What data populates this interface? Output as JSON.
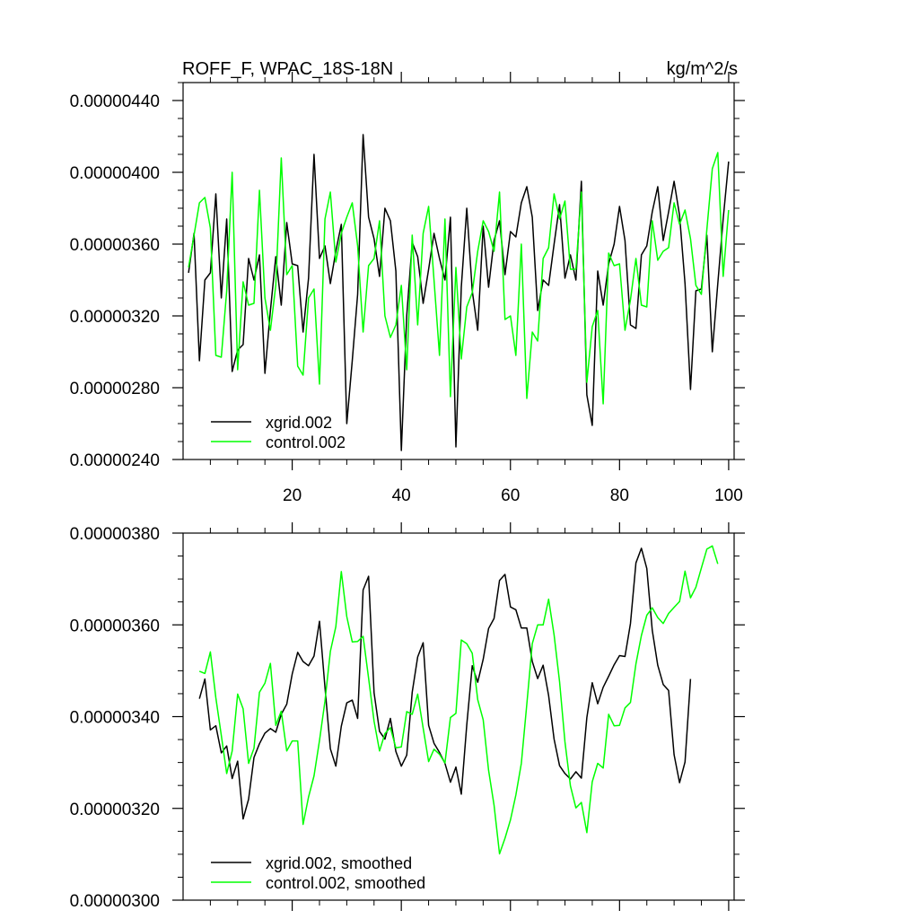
{
  "colors": {
    "series_a": "#000000",
    "series_b": "#00ff00",
    "axis": "#000000",
    "background": "#ffffff"
  },
  "chart_data": [
    {
      "type": "line",
      "title": "ROFF_F, WPAC_18S-18N",
      "units": "kg/m^2/s",
      "xlabel": "",
      "ylabel": "",
      "xlim": [
        0,
        101
      ],
      "ylim": [
        2.4e-06,
        4.5e-06
      ],
      "y_tick_labels": [
        "0.00000240",
        "0.00000280",
        "0.00000320",
        "0.00000360",
        "0.00000400",
        "0.00000440"
      ],
      "y_ticks": [
        2.4e-06,
        2.8e-06,
        3.2e-06,
        3.6e-06,
        4e-06,
        4.4e-06
      ],
      "x_tick_labels": [
        "20",
        "40",
        "60",
        "80",
        "100"
      ],
      "x_ticks": [
        20,
        40,
        60,
        80,
        100
      ],
      "legend_position": "bottom-left",
      "series": [
        {
          "name": "xgrid.002",
          "color": "#000000",
          "x_start": 1,
          "values": [
            3.44e-06,
            3.66e-06,
            2.95e-06,
            3.4e-06,
            3.44e-06,
            3.88e-06,
            3.3e-06,
            3.74e-06,
            2.89e-06,
            3.01e-06,
            3.04e-06,
            3.52e-06,
            3.4e-06,
            3.54e-06,
            2.88e-06,
            3.23e-06,
            3.53e-06,
            3.26e-06,
            3.72e-06,
            3.49e-06,
            3.48e-06,
            3.11e-06,
            3.41e-06,
            4.1e-06,
            3.52e-06,
            3.59e-06,
            3.38e-06,
            3.56e-06,
            3.71e-06,
            2.6e-06,
            2.95e-06,
            3.32e-06,
            4.21e-06,
            3.75e-06,
            3.63e-06,
            3.42e-06,
            3.8e-06,
            3.73e-06,
            3.45e-06,
            2.45e-06,
            3.2e-06,
            3.61e-06,
            3.53e-06,
            3.27e-06,
            3.46e-06,
            3.66e-06,
            3.52e-06,
            3.4e-06,
            3.75e-06,
            2.47e-06,
            3.36e-06,
            3.8e-06,
            3.34e-06,
            3.12e-06,
            3.7e-06,
            3.36e-06,
            3.62e-06,
            3.73e-06,
            3.43e-06,
            3.67e-06,
            3.64e-06,
            3.83e-06,
            3.92e-06,
            3.75e-06,
            3.23e-06,
            3.4e-06,
            3.37e-06,
            3.6e-06,
            3.82e-06,
            3.41e-06,
            3.54e-06,
            3.4e-06,
            3.95e-06,
            2.76e-06,
            2.59e-06,
            3.45e-06,
            3.26e-06,
            3.49e-06,
            3.6e-06,
            3.81e-06,
            3.62e-06,
            3.15e-06,
            3.13e-06,
            3.54e-06,
            3.59e-06,
            3.78e-06,
            3.92e-06,
            3.62e-06,
            3.78e-06,
            3.95e-06,
            3.76e-06,
            3.38e-06,
            2.79e-06,
            3.34e-06,
            3.35e-06,
            3.65e-06,
            3e-06,
            3.38e-06,
            3.74e-06,
            4.06e-06
          ]
        },
        {
          "name": "control.002",
          "color": "#00ff00",
          "x_start": 1,
          "values": [
            3.47e-06,
            3.65e-06,
            3.83e-06,
            3.86e-06,
            3.69e-06,
            2.98e-06,
            2.97e-06,
            3.34e-06,
            4e-06,
            2.9e-06,
            3.39e-06,
            3.26e-06,
            3.27e-06,
            3.9e-06,
            3.3e-06,
            3.12e-06,
            3.37e-06,
            4.08e-06,
            3.43e-06,
            3.48e-06,
            2.92e-06,
            2.87e-06,
            3.3e-06,
            3.35e-06,
            2.82e-06,
            3.74e-06,
            3.89e-06,
            3.5e-06,
            3.66e-06,
            3.75e-06,
            3.83e-06,
            3.59e-06,
            3.11e-06,
            3.48e-06,
            3.52e-06,
            3.73e-06,
            3.2e-06,
            3.08e-06,
            3.15e-06,
            3.37e-06,
            2.9e-06,
            3.65e-06,
            3.15e-06,
            3.66e-06,
            3.81e-06,
            3.4e-06,
            2.98e-06,
            3.74e-06,
            2.75e-06,
            3.47e-06,
            2.96e-06,
            3.25e-06,
            3.33e-06,
            3.56e-06,
            3.73e-06,
            3.67e-06,
            3.56e-06,
            3.89e-06,
            3.18e-06,
            3.2e-06,
            2.98e-06,
            3.6e-06,
            2.74e-06,
            3.11e-06,
            3.06e-06,
            3.52e-06,
            3.58e-06,
            3.88e-06,
            3.74e-06,
            3.84e-06,
            3.46e-06,
            3.46e-06,
            3.89e-06,
            2.83e-06,
            3.14e-06,
            3.23e-06,
            2.71e-06,
            3.55e-06,
            3.48e-06,
            3.49e-06,
            3.12e-06,
            3.29e-06,
            3.52e-06,
            3.26e-06,
            3.25e-06,
            3.73e-06,
            3.51e-06,
            3.56e-06,
            3.58e-06,
            3.83e-06,
            3.71e-06,
            3.79e-06,
            3.63e-06,
            3.37e-06,
            3.32e-06,
            3.68e-06,
            4.02e-06,
            4.11e-06,
            3.42e-06,
            3.79e-06
          ]
        }
      ]
    },
    {
      "type": "line",
      "title": "",
      "xlabel": "",
      "ylabel": "",
      "xlim": [
        0,
        101
      ],
      "ylim": [
        3e-06,
        3.8e-06
      ],
      "y_tick_labels": [
        "0.00000300",
        "0.00000320",
        "0.00000340",
        "0.00000360",
        "0.00000380"
      ],
      "y_ticks": [
        3e-06,
        3.2e-06,
        3.4e-06,
        3.6e-06,
        3.8e-06
      ],
      "x_ticks": [
        20,
        40,
        60,
        80,
        100
      ],
      "legend_position": "bottom-left",
      "series": [
        {
          "name": "xgrid.002, smoothed",
          "color": "#000000",
          "x_start": 3,
          "values": [
            3.439e-06,
            3.482e-06,
            3.371e-06,
            3.38e-06,
            3.321e-06,
            3.336e-06,
            3.265e-06,
            3.303e-06,
            3.177e-06,
            3.22e-06,
            3.311e-06,
            3.341e-06,
            3.364e-06,
            3.374e-06,
            3.366e-06,
            3.405e-06,
            3.427e-06,
            3.493e-06,
            3.54e-06,
            3.52e-06,
            3.511e-06,
            3.532e-06,
            3.608e-06,
            3.464e-06,
            3.33e-06,
            3.292e-06,
            3.379e-06,
            3.43e-06,
            3.436e-06,
            3.396e-06,
            3.676e-06,
            3.706e-06,
            3.452e-06,
            3.368e-06,
            3.351e-06,
            3.396e-06,
            3.324e-06,
            3.292e-06,
            3.316e-06,
            3.453e-06,
            3.53e-06,
            3.561e-06,
            3.381e-06,
            3.342e-06,
            3.322e-06,
            3.298e-06,
            3.257e-06,
            3.29e-06,
            3.231e-06,
            3.382e-06,
            3.511e-06,
            3.475e-06,
            3.525e-06,
            3.592e-06,
            3.614e-06,
            3.697e-06,
            3.71e-06,
            3.639e-06,
            3.633e-06,
            3.593e-06,
            3.593e-06,
            3.52e-06,
            3.483e-06,
            3.512e-06,
            3.446e-06,
            3.351e-06,
            3.293e-06,
            3.276e-06,
            3.264e-06,
            3.28e-06,
            3.266e-06,
            3.398e-06,
            3.474e-06,
            3.428e-06,
            3.464e-06,
            3.488e-06,
            3.513e-06,
            3.533e-06,
            3.531e-06,
            3.603e-06,
            3.735e-06,
            3.767e-06,
            3.723e-06,
            3.588e-06,
            3.512e-06,
            3.47e-06,
            3.457e-06,
            3.317e-06,
            3.256e-06,
            3.301e-06,
            3.482e-06
          ]
        },
        {
          "name": "control.002, smoothed",
          "color": "#00ff00",
          "x_start": 3,
          "values": [
            3.499e-06,
            3.494e-06,
            3.541e-06,
            3.441e-06,
            3.359e-06,
            3.276e-06,
            3.325e-06,
            3.449e-06,
            3.417e-06,
            3.298e-06,
            3.331e-06,
            3.453e-06,
            3.473e-06,
            3.516e-06,
            3.381e-06,
            3.412e-06,
            3.325e-06,
            3.347e-06,
            3.347e-06,
            3.165e-06,
            3.225e-06,
            3.271e-06,
            3.348e-06,
            3.434e-06,
            3.542e-06,
            3.596e-06,
            3.716e-06,
            3.618e-06,
            3.563e-06,
            3.564e-06,
            3.575e-06,
            3.484e-06,
            3.39e-06,
            3.325e-06,
            3.363e-06,
            3.376e-06,
            3.332e-06,
            3.334e-06,
            3.411e-06,
            3.405e-06,
            3.449e-06,
            3.375e-06,
            3.302e-06,
            3.329e-06,
            3.318e-06,
            3.299e-06,
            3.398e-06,
            3.407e-06,
            3.567e-06,
            3.559e-06,
            3.538e-06,
            3.437e-06,
            3.393e-06,
            3.283e-06,
            3.207e-06,
            3.101e-06,
            3.135e-06,
            3.175e-06,
            3.229e-06,
            3.298e-06,
            3.427e-06,
            3.559e-06,
            3.6e-06,
            3.6e-06,
            3.656e-06,
            3.578e-06,
            3.476e-06,
            3.345e-06,
            3.249e-06,
            3.201e-06,
            3.213e-06,
            3.147e-06,
            3.258e-06,
            3.298e-06,
            3.288e-06,
            3.405e-06,
            3.38e-06,
            3.381e-06,
            3.419e-06,
            3.431e-06,
            3.515e-06,
            3.577e-06,
            3.621e-06,
            3.637e-06,
            3.616e-06,
            3.603e-06,
            3.625e-06,
            3.638e-06,
            3.651e-06,
            3.717e-06,
            3.659e-06,
            3.682e-06,
            3.724e-06,
            3.765e-06,
            3.772e-06,
            3.733e-06
          ]
        }
      ]
    }
  ]
}
